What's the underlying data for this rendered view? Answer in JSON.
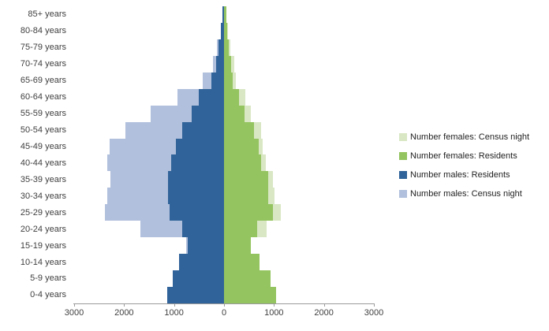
{
  "chart_data": {
    "type": "bar",
    "subtype": "population-pyramid",
    "title": "",
    "xlabel": "",
    "ylabel": "",
    "grid": false,
    "legend_position": "right",
    "axis_max_each_side": 3000,
    "x_tick_labels": [
      "3000",
      "2000",
      "1000",
      "0",
      "1000",
      "2000",
      "3000"
    ],
    "x_tick_values": [
      -3000,
      -2000,
      -1000,
      0,
      1000,
      2000,
      3000
    ],
    "categories": [
      "85+ years",
      "80-84 years",
      "75-79 years",
      "70-74 years",
      "65-69 years",
      "60-64 years",
      "55-59 years",
      "50-54 years",
      "45-49 years",
      "40-44 years",
      "35-39 years",
      "30-34 years",
      "25-29 years",
      "20-24 years",
      "15-19 years",
      "10-14 years",
      "5-9 years",
      "0-4 years"
    ],
    "series": [
      {
        "name": "Number females: Census night",
        "color": "#d9e7c4",
        "side": "right",
        "layer": "back",
        "values": [
          40,
          80,
          130,
          205,
          240,
          420,
          530,
          735,
          775,
          840,
          985,
          1015,
          1130,
          850,
          520,
          700,
          920,
          1030
        ]
      },
      {
        "name": "Number females: Residents",
        "color": "#94c45f",
        "side": "right",
        "layer": "front",
        "values": [
          40,
          65,
          100,
          145,
          170,
          300,
          415,
          605,
          695,
          735,
          890,
          890,
          975,
          665,
          535,
          710,
          930,
          1040
        ]
      },
      {
        "name": "Number males: Residents",
        "color": "#306399",
        "side": "left",
        "layer": "front",
        "values": [
          25,
          60,
          110,
          160,
          260,
          500,
          650,
          840,
          960,
          1060,
          1115,
          1115,
          1090,
          830,
          730,
          900,
          1030,
          1140
        ]
      },
      {
        "name": "Number males: Census night",
        "color": "#b1c0dc",
        "side": "left",
        "layer": "back",
        "values": [
          25,
          60,
          140,
          220,
          430,
          930,
          1470,
          1970,
          2290,
          2340,
          2280,
          2340,
          2390,
          1670,
          760,
          890,
          1020,
          1130
        ]
      }
    ]
  }
}
